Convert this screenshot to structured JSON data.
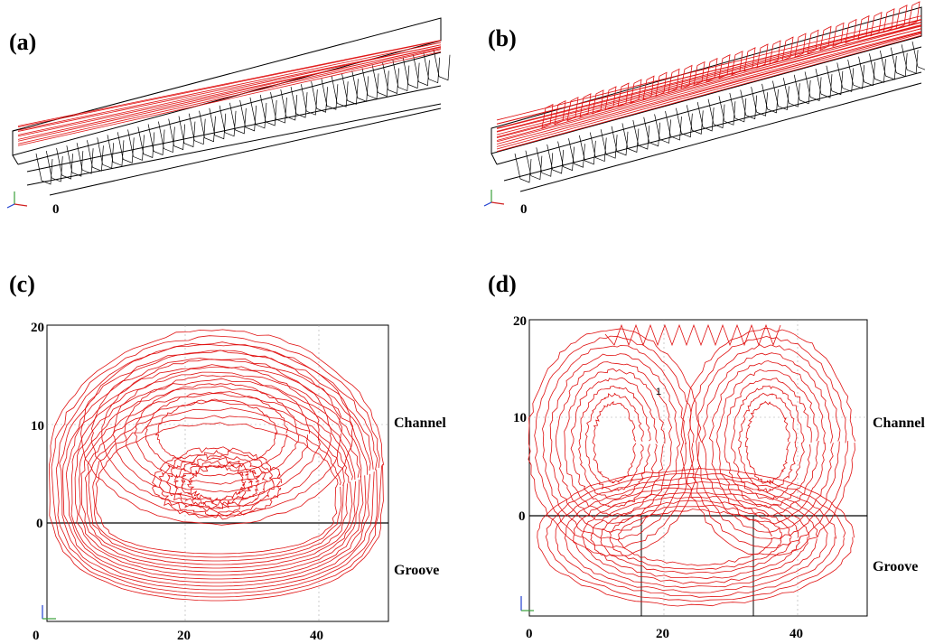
{
  "figure": {
    "panels": [
      {
        "id": "a",
        "label": "(a)",
        "axis_zero": "0"
      },
      {
        "id": "b",
        "label": "(b)",
        "axis_zero": "0"
      },
      {
        "id": "c",
        "label": "(c)"
      },
      {
        "id": "d",
        "label": "(d)"
      }
    ]
  },
  "colors": {
    "streamline": "#e01010",
    "mesh": "#000000",
    "grid": "#aaaaaa"
  },
  "chart_data": [
    {
      "panel": "c",
      "type": "line",
      "title": "",
      "xlabel": "",
      "ylabel": "",
      "xlim": [
        0,
        50
      ],
      "ylim": [
        -15,
        20
      ],
      "x_ticks": [
        "0",
        "20",
        "40"
      ],
      "y_ticks": [
        "20",
        "10",
        "0"
      ],
      "annotations": [
        "Channel",
        "Groove"
      ],
      "description_of_marks": "single large recirculating vortex streamlines spanning channel and groove"
    },
    {
      "panel": "d",
      "type": "line",
      "title": "",
      "xlabel": "",
      "ylabel": "",
      "xlim": [
        0,
        50
      ],
      "ylim": [
        -15,
        20
      ],
      "x_ticks": [
        "0",
        "20",
        "40"
      ],
      "y_ticks": [
        "20",
        "10",
        "0"
      ],
      "annotations": [
        "Channel",
        "Groove",
        "1"
      ],
      "description_of_marks": "two counter-rotating vortex streamlines; groove region partitioned by vertical lines"
    }
  ]
}
